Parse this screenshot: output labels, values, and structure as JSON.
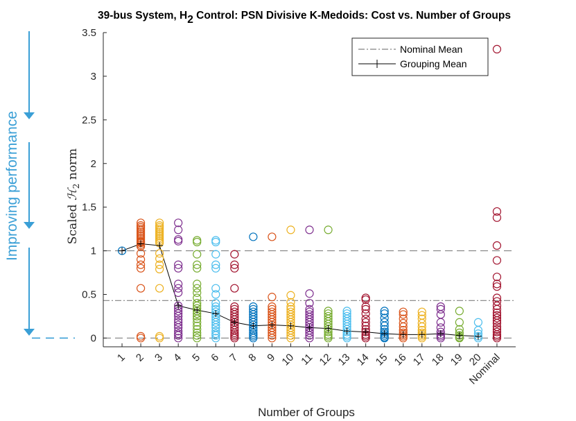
{
  "chart_data": {
    "type": "scatter",
    "title_main": "39-bus System, H",
    "title_sub": "2",
    "title_rest": " Control: PSN Divisive K-Medoids: Cost vs. Number of Groups",
    "xlabel": "Number of Groups",
    "ylabel_main": "Scaled ",
    "ylabel_symbol": "ℋ",
    "ylabel_sub": "2",
    "ylabel_rest": " norm",
    "ylim": [
      -0.1,
      3.5
    ],
    "yticks": [
      0,
      0.5,
      1,
      1.5,
      2,
      2.5,
      3,
      3.5
    ],
    "ytick_labels": [
      "0",
      "0.5",
      "1",
      "1.5",
      "2",
      "2.5",
      "3",
      "3.5"
    ],
    "categories": [
      "1",
      "2",
      "3",
      "4",
      "5",
      "6",
      "7",
      "8",
      "9",
      "10",
      "11",
      "12",
      "13",
      "14",
      "15",
      "16",
      "17",
      "18",
      "19",
      "20",
      "Nominal"
    ],
    "side_annotation": "Improving performance",
    "side_color": "#3a9fd6",
    "colors": [
      "#0072bd",
      "#d95319",
      "#edb120",
      "#7e2f8e",
      "#77ac30",
      "#4dbeee",
      "#a2142f"
    ],
    "reference_lines": [
      {
        "name": "Nominal Mean",
        "value": 0.43,
        "style": "dashdot",
        "color": "#808080"
      },
      {
        "name": "baseline-1",
        "value": 1.0,
        "style": "dashed",
        "color": "#808080"
      },
      {
        "name": "baseline-0",
        "value": 0.0,
        "style": "dashed",
        "color": "#808080"
      }
    ],
    "legend": [
      {
        "label": "Nominal Mean",
        "style": "dashdot"
      },
      {
        "label": "Grouping Mean",
        "style": "line-plus"
      }
    ],
    "legend_position": "top-right",
    "grouping_mean": [
      1.0,
      1.08,
      1.06,
      0.37,
      0.32,
      0.28,
      0.18,
      0.14,
      0.15,
      0.14,
      0.12,
      0.11,
      0.08,
      0.07,
      0.05,
      0.04,
      0.04,
      0.05,
      0.03,
      0.02
    ],
    "points": [
      [
        1.0
      ],
      [
        1.32,
        1.29,
        1.27,
        1.25,
        1.23,
        1.21,
        1.19,
        1.17,
        1.15,
        1.13,
        1.11,
        1.1,
        1.09,
        1.07,
        1.05,
        0.97,
        0.9,
        0.84,
        0.8,
        0.57,
        0.02,
        0.0
      ],
      [
        1.32,
        1.29,
        1.27,
        1.25,
        1.23,
        1.21,
        1.19,
        1.17,
        1.15,
        1.13,
        1.11,
        1.09,
        0.97,
        0.91,
        0.84,
        0.79,
        0.57,
        0.02,
        0.0
      ],
      [
        1.32,
        1.24,
        1.13,
        1.11,
        0.84,
        0.8,
        0.62,
        0.57,
        0.52,
        0.37,
        0.34,
        0.31,
        0.28,
        0.25,
        0.21,
        0.18,
        0.15,
        0.12,
        0.08,
        0.05,
        0.03,
        0.0
      ],
      [
        1.12,
        1.1,
        0.96,
        0.84,
        0.8,
        0.62,
        0.57,
        0.52,
        0.46,
        0.4,
        0.37,
        0.34,
        0.31,
        0.28,
        0.25,
        0.22,
        0.18,
        0.14,
        0.1,
        0.06,
        0.03,
        0.0
      ],
      [
        1.12,
        1.1,
        0.96,
        0.84,
        0.8,
        0.57,
        0.5,
        0.4,
        0.36,
        0.33,
        0.3,
        0.27,
        0.24,
        0.21,
        0.18,
        0.15,
        0.12,
        0.08,
        0.05,
        0.03,
        0.0
      ],
      [
        0.96,
        0.84,
        0.8,
        0.57,
        0.36,
        0.33,
        0.3,
        0.27,
        0.24,
        0.21,
        0.18,
        0.15,
        0.12,
        0.09,
        0.06,
        0.04,
        0.02,
        0.0
      ],
      [
        1.16,
        0.36,
        0.33,
        0.3,
        0.27,
        0.24,
        0.21,
        0.18,
        0.15,
        0.12,
        0.09,
        0.06,
        0.04,
        0.02,
        0.0
      ],
      [
        1.16,
        0.47,
        0.36,
        0.33,
        0.3,
        0.27,
        0.24,
        0.21,
        0.18,
        0.15,
        0.12,
        0.09,
        0.06,
        0.03,
        0.0
      ],
      [
        1.24,
        0.49,
        0.41,
        0.36,
        0.33,
        0.3,
        0.27,
        0.24,
        0.21,
        0.18,
        0.15,
        0.12,
        0.09,
        0.06,
        0.03,
        0.0
      ],
      [
        1.24,
        0.51,
        0.4,
        0.33,
        0.3,
        0.27,
        0.24,
        0.21,
        0.18,
        0.15,
        0.12,
        0.09,
        0.06,
        0.03,
        0.0
      ],
      [
        1.24,
        0.31,
        0.28,
        0.25,
        0.22,
        0.19,
        0.16,
        0.13,
        0.1,
        0.07,
        0.04,
        0.02,
        0.0
      ],
      [
        0.31,
        0.28,
        0.25,
        0.22,
        0.19,
        0.16,
        0.13,
        0.1,
        0.07,
        0.04,
        0.02,
        0.0
      ],
      [
        0.46,
        0.44,
        0.36,
        0.33,
        0.28,
        0.22,
        0.18,
        0.14,
        0.1,
        0.07,
        0.04,
        0.02,
        0.0
      ],
      [
        0.31,
        0.28,
        0.23,
        0.18,
        0.14,
        0.1,
        0.07,
        0.05,
        0.03,
        0.01,
        0.0
      ],
      [
        0.3,
        0.27,
        0.22,
        0.17,
        0.13,
        0.09,
        0.06,
        0.04,
        0.02,
        0.0
      ],
      [
        0.3,
        0.26,
        0.22,
        0.17,
        0.13,
        0.09,
        0.06,
        0.04,
        0.02,
        0.0
      ],
      [
        0.36,
        0.33,
        0.27,
        0.18,
        0.12,
        0.07,
        0.04,
        0.02,
        0.0
      ],
      [
        0.31,
        0.18,
        0.1,
        0.06,
        0.03,
        0.01,
        0.0
      ],
      [
        0.18,
        0.09,
        0.05,
        0.02,
        0.0
      ],
      [
        3.31,
        1.45,
        1.38,
        1.06,
        0.89,
        0.7,
        0.62,
        0.59,
        0.46,
        0.42,
        0.37,
        0.33,
        0.29,
        0.26,
        0.23,
        0.2,
        0.17,
        0.13,
        0.1,
        0.07,
        0.04,
        0.02,
        0.0
      ]
    ]
  }
}
